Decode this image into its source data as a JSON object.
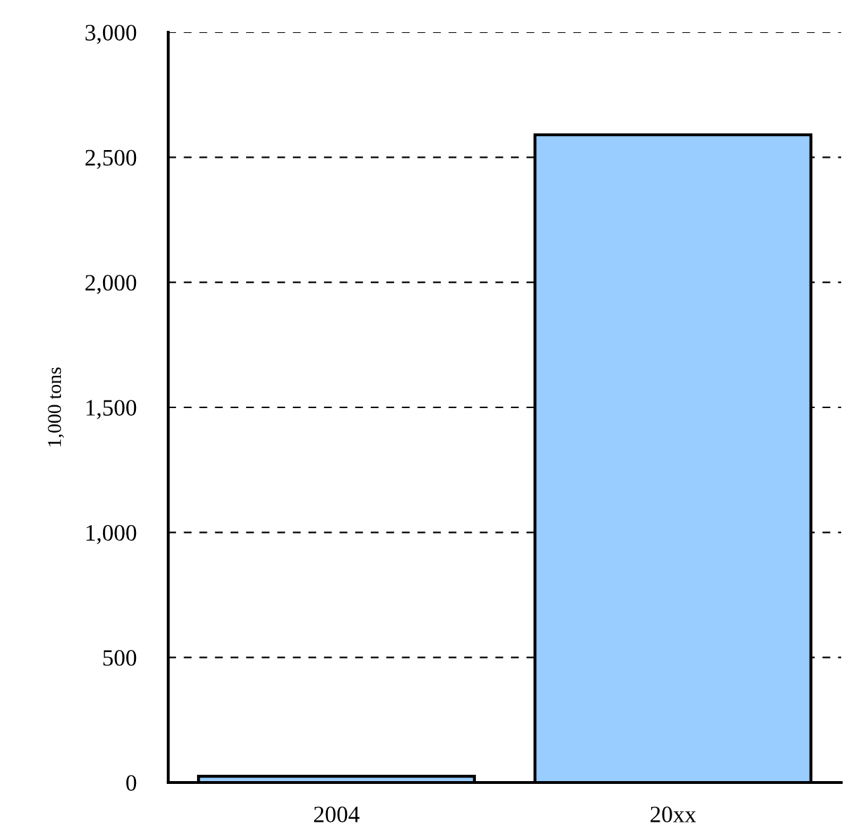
{
  "chart_data": {
    "type": "bar",
    "ylabel": "1,000 tons",
    "categories": [
      "2004",
      "20xx"
    ],
    "values": [
      25,
      2590
    ],
    "color": "#99ccff",
    "ylim": [
      0,
      3000
    ],
    "yticks": [
      {
        "value": 0,
        "label": "0"
      },
      {
        "value": 500,
        "label": "500"
      },
      {
        "value": 1000,
        "label": "1,000"
      },
      {
        "value": 1500,
        "label": "1,500"
      },
      {
        "value": 2000,
        "label": "2,000"
      },
      {
        "value": 2500,
        "label": "2,500"
      },
      {
        "value": 3000,
        "label": "3,000"
      }
    ],
    "grid": "y"
  }
}
